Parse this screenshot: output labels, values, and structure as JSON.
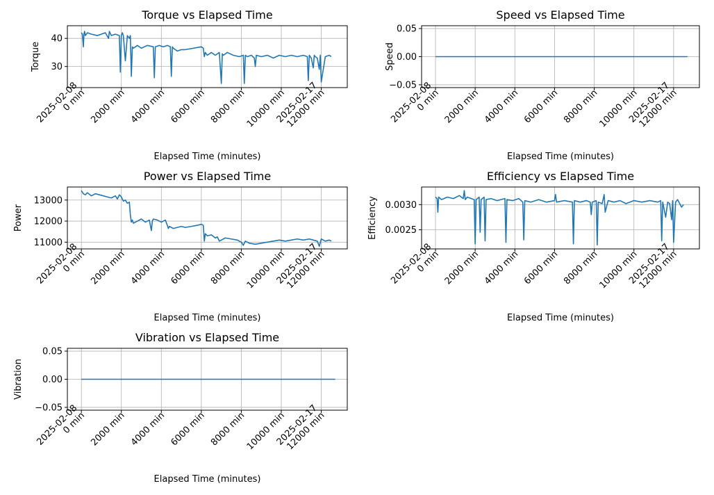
{
  "figure": {
    "background": "#ffffff",
    "line_color": "#1f77b4",
    "grid_color": "#b0b0b0"
  },
  "chart_data": [
    {
      "type": "line",
      "title": "Torque vs Elapsed Time",
      "xlabel": "Elapsed Time (minutes)",
      "ylabel": "Torque",
      "xlim": [
        -700,
        13300
      ],
      "ylim": [
        22.5,
        44.5
      ],
      "yticks": [
        {
          "v": 30,
          "label": "30"
        },
        {
          "v": 40,
          "label": "40"
        }
      ],
      "xticks": [
        {
          "v": 0,
          "label": "2025-02-08\n0 min"
        },
        {
          "v": 2000,
          "label": "2000 min"
        },
        {
          "v": 4000,
          "label": "4000 min"
        },
        {
          "v": 6000,
          "label": "6000 min"
        },
        {
          "v": 8000,
          "label": "8000 min"
        },
        {
          "v": 10000,
          "label": "10000 min"
        },
        {
          "v": 12000,
          "label": "2025-02-17\n12000 min"
        }
      ],
      "grid": true,
      "series": [
        {
          "x": [
            0,
            50,
            100,
            130,
            160,
            200,
            300,
            500,
            800,
            1200,
            1360,
            1400,
            1500,
            1700,
            1900,
            1950,
            2000,
            2050,
            2100,
            2200,
            2300,
            2400,
            2450,
            2500,
            2550,
            2600,
            2800,
            3000,
            3300,
            3600,
            3650,
            3700,
            3900,
            4100,
            4300,
            4450,
            4500,
            4550,
            4600,
            4800,
            5000,
            5200,
            6000,
            6100,
            6150,
            6200,
            6300,
            6500,
            6700,
            6900,
            7000,
            7050,
            7100,
            7300,
            7600,
            7900,
            8100,
            8150,
            8200,
            8300,
            8500,
            8650,
            8700,
            8750,
            9000,
            9300,
            9600,
            9900,
            10200,
            10500,
            10800,
            11100,
            11300,
            11350,
            11400,
            11500,
            11600,
            11650,
            11700,
            11800,
            11900,
            11950,
            12000,
            12200,
            12400,
            12500
          ],
          "y": [
            42,
            41.5,
            37,
            41.5,
            42.5,
            41,
            42,
            41.5,
            41,
            42,
            40,
            42.5,
            41,
            41.5,
            41,
            28,
            41,
            42,
            41,
            32,
            41,
            40,
            41,
            26.5,
            37,
            36.5,
            37.5,
            36.5,
            37.5,
            37,
            26,
            37,
            37.5,
            37,
            37.5,
            37,
            26.5,
            37,
            36.5,
            35.5,
            36,
            36,
            37,
            36.5,
            33.5,
            35,
            34,
            35,
            34,
            35,
            24,
            34.5,
            34,
            35,
            34,
            33.5,
            34,
            24,
            34,
            33.5,
            34,
            33,
            30,
            34,
            33.5,
            34,
            33,
            34,
            33.5,
            34,
            33.5,
            34,
            33.5,
            25,
            34,
            33,
            29.5,
            34,
            33.5,
            33,
            29,
            34,
            24.5,
            33.5,
            34,
            33.5
          ]
        }
      ]
    },
    {
      "type": "line",
      "title": "Speed vs Elapsed Time",
      "xlabel": "Elapsed Time (minutes)",
      "ylabel": "Speed",
      "xlim": [
        -700,
        13300
      ],
      "ylim": [
        -0.055,
        0.055
      ],
      "yticks": [
        {
          "v": -0.05,
          "label": "−0.05"
        },
        {
          "v": 0.0,
          "label": "0.00"
        },
        {
          "v": 0.05,
          "label": "0.05"
        }
      ],
      "xticks": [
        {
          "v": 0,
          "label": "2025-02-08\n0 min"
        },
        {
          "v": 2000,
          "label": "2000 min"
        },
        {
          "v": 4000,
          "label": "4000 min"
        },
        {
          "v": 6000,
          "label": "6000 min"
        },
        {
          "v": 8000,
          "label": "8000 min"
        },
        {
          "v": 10000,
          "label": "10000 min"
        },
        {
          "v": 12000,
          "label": "2025-02-17\n12000 min"
        }
      ],
      "grid": true,
      "series": [
        {
          "x": [
            0,
            12700
          ],
          "y": [
            0,
            0
          ]
        }
      ]
    },
    {
      "type": "line",
      "title": "Power vs Elapsed Time",
      "xlabel": "Elapsed Time (minutes)",
      "ylabel": "Power",
      "xlim": [
        -700,
        13300
      ],
      "ylim": [
        10680,
        13620
      ],
      "yticks": [
        {
          "v": 11000,
          "label": "11000"
        },
        {
          "v": 12000,
          "label": "12000"
        },
        {
          "v": 13000,
          "label": "13000"
        }
      ],
      "xticks": [
        {
          "v": 0,
          "label": "2025-02-08\n0 min"
        },
        {
          "v": 2000,
          "label": "2000 min"
        },
        {
          "v": 4000,
          "label": "4000 min"
        },
        {
          "v": 6000,
          "label": "6000 min"
        },
        {
          "v": 8000,
          "label": "8000 min"
        },
        {
          "v": 10000,
          "label": "10000 min"
        },
        {
          "v": 12000,
          "label": "2025-02-17\n12000 min"
        }
      ],
      "grid": true,
      "series": [
        {
          "x": [
            0,
            100,
            200,
            300,
            500,
            700,
            900,
            1100,
            1300,
            1500,
            1700,
            1800,
            1900,
            2000,
            2100,
            2200,
            2300,
            2400,
            2450,
            2500,
            2550,
            2600,
            2800,
            3000,
            3200,
            3400,
            3500,
            3550,
            3600,
            3800,
            4000,
            4200,
            4300,
            4350,
            4400,
            4500,
            4600,
            4800,
            5000,
            5200,
            5500,
            5800,
            6000,
            6100,
            6150,
            6200,
            6300,
            6500,
            6700,
            6800,
            6900,
            7200,
            7500,
            7800,
            8000,
            8100,
            8200,
            8400,
            8700,
            9000,
            9300,
            9600,
            9900,
            10200,
            10500,
            10800,
            11100,
            11400,
            11600,
            11800,
            11900,
            12000,
            12200,
            12400,
            12500
          ],
          "y": [
            13450,
            13300,
            13250,
            13350,
            13200,
            13300,
            13250,
            13200,
            13150,
            13100,
            13200,
            13050,
            13250,
            13150,
            12950,
            13000,
            12850,
            12900,
            12300,
            11950,
            12050,
            11900,
            12000,
            12100,
            11950,
            12050,
            11550,
            12000,
            12100,
            12050,
            11950,
            12050,
            11800,
            11650,
            11750,
            11700,
            11650,
            11700,
            11750,
            11700,
            11750,
            11800,
            11850,
            11800,
            11050,
            11400,
            11300,
            11350,
            11200,
            11250,
            11050,
            11200,
            11150,
            11100,
            11000,
            10850,
            11050,
            10950,
            10900,
            10950,
            11000,
            11050,
            11100,
            11050,
            11100,
            11150,
            11100,
            11150,
            11100,
            11050,
            10800,
            11150,
            11050,
            11100,
            11050
          ]
        }
      ]
    },
    {
      "type": "line",
      "title": "Efficiency vs Elapsed Time",
      "xlabel": "Elapsed Time (minutes)",
      "ylabel": "Efficiency",
      "xlim": [
        -700,
        13300
      ],
      "ylim": [
        0.00212,
        0.00335
      ],
      "yticks": [
        {
          "v": 0.0025,
          "label": "0.0025"
        },
        {
          "v": 0.003,
          "label": "0.0030"
        }
      ],
      "xticks": [
        {
          "v": 0,
          "label": "2025-02-08\n0 min"
        },
        {
          "v": 2000,
          "label": "2000 min"
        },
        {
          "v": 4000,
          "label": "4000 min"
        },
        {
          "v": 6000,
          "label": "6000 min"
        },
        {
          "v": 8000,
          "label": "8000 min"
        },
        {
          "v": 10000,
          "label": "10000 min"
        },
        {
          "v": 12000,
          "label": "2025-02-17\n12000 min"
        }
      ],
      "grid": true,
      "series": [
        {
          "x": [
            0,
            80,
            120,
            160,
            300,
            600,
            900,
            1200,
            1400,
            1450,
            1500,
            1600,
            1800,
            1950,
            2000,
            2050,
            2200,
            2250,
            2300,
            2450,
            2500,
            2550,
            2800,
            3100,
            3500,
            3550,
            3600,
            3900,
            4200,
            4400,
            4450,
            4500,
            4800,
            5200,
            5600,
            6000,
            6050,
            6100,
            6500,
            6900,
            6950,
            7000,
            7300,
            7600,
            7800,
            7850,
            7900,
            8100,
            8150,
            8200,
            8400,
            8500,
            8550,
            8700,
            9000,
            9300,
            9600,
            10000,
            10400,
            10800,
            11200,
            11350,
            11400,
            11450,
            11600,
            11700,
            11800,
            11900,
            11950,
            12000,
            12100,
            12200,
            12400,
            12500
          ],
          "y": [
            0.00315,
            0.00312,
            0.00285,
            0.00315,
            0.0031,
            0.00315,
            0.00312,
            0.00318,
            0.00312,
            0.00328,
            0.0031,
            0.00315,
            0.00312,
            0.0031,
            0.00222,
            0.0031,
            0.00315,
            0.00245,
            0.0031,
            0.00315,
            0.00228,
            0.0031,
            0.00312,
            0.00308,
            0.00312,
            0.00225,
            0.0031,
            0.00308,
            0.00312,
            0.00305,
            0.0023,
            0.00308,
            0.00305,
            0.0031,
            0.00305,
            0.00308,
            0.0032,
            0.00305,
            0.00308,
            0.00305,
            0.00222,
            0.00308,
            0.00305,
            0.00308,
            0.00305,
            0.0028,
            0.00305,
            0.00308,
            0.0022,
            0.00305,
            0.00302,
            0.0032,
            0.00285,
            0.00308,
            0.00305,
            0.00308,
            0.00302,
            0.00308,
            0.00305,
            0.00308,
            0.00305,
            0.00308,
            0.00228,
            0.00305,
            0.00275,
            0.00305,
            0.00302,
            0.0027,
            0.00308,
            0.00225,
            0.00305,
            0.0031,
            0.00295,
            0.003
          ]
        }
      ]
    },
    {
      "type": "line",
      "title": "Vibration vs Elapsed Time",
      "xlabel": "Elapsed Time (minutes)",
      "ylabel": "Vibration",
      "xlim": [
        -700,
        13300
      ],
      "ylim": [
        -0.055,
        0.055
      ],
      "yticks": [
        {
          "v": -0.05,
          "label": "−0.05"
        },
        {
          "v": 0.0,
          "label": "0.00"
        },
        {
          "v": 0.05,
          "label": "0.05"
        }
      ],
      "xticks": [
        {
          "v": 0,
          "label": "2025-02-08\n0 min"
        },
        {
          "v": 2000,
          "label": "2000 min"
        },
        {
          "v": 4000,
          "label": "4000 min"
        },
        {
          "v": 6000,
          "label": "6000 min"
        },
        {
          "v": 8000,
          "label": "8000 min"
        },
        {
          "v": 10000,
          "label": "10000 min"
        },
        {
          "v": 12000,
          "label": "2025-02-17\n12000 min"
        }
      ],
      "grid": true,
      "series": [
        {
          "x": [
            0,
            12700
          ],
          "y": [
            0,
            0
          ]
        }
      ]
    }
  ]
}
